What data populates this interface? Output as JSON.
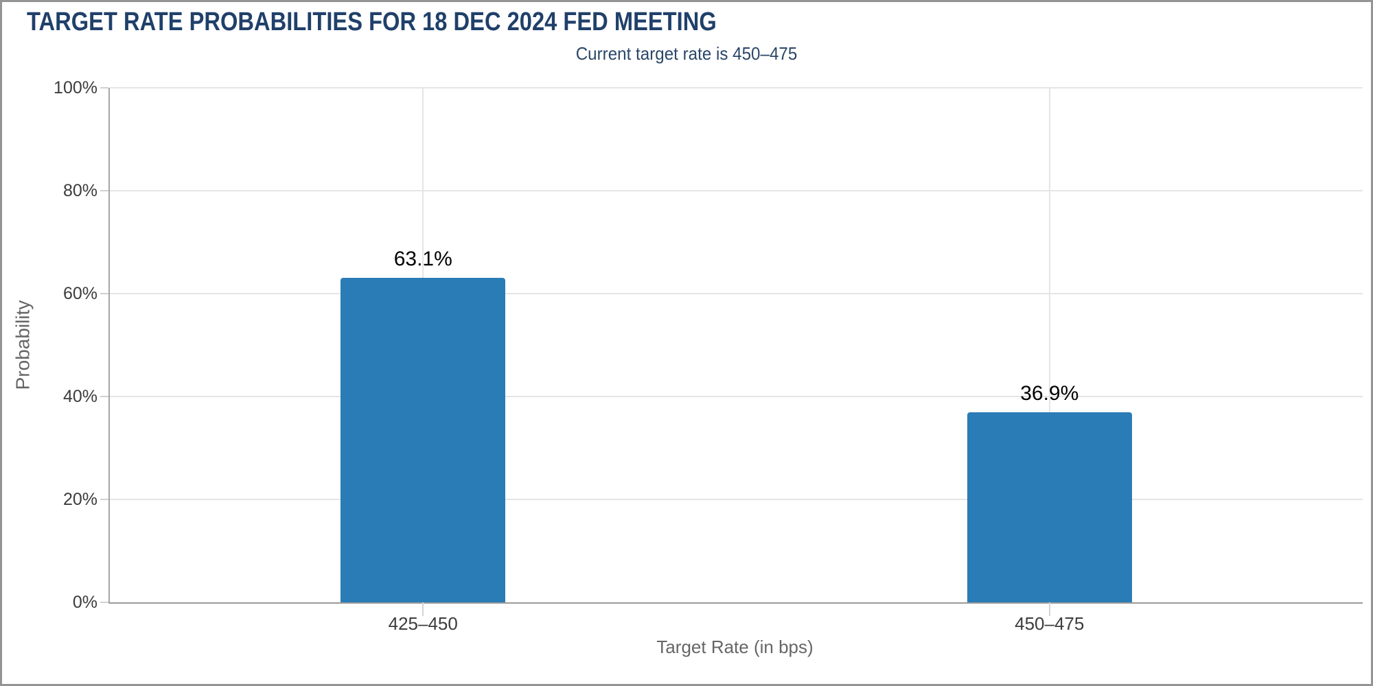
{
  "header": {
    "title": "TARGET RATE PROBABILITIES FOR 18 DEC 2024 FED MEETING",
    "subtitle": "Current target rate is 450–475"
  },
  "colors": {
    "title": "#20406a",
    "subtitle": "#2b4668",
    "bar": "#2a7cb7",
    "gridline": "#e5e5e5",
    "axis_line": "#9a9a9a",
    "tick_label": "#3c3c3c",
    "axis_title": "#666666",
    "value_label": "#000000",
    "frame_border": "#949494"
  },
  "chart_data": {
    "type": "bar",
    "title": "TARGET RATE PROBABILITIES FOR 18 DEC 2024 FED MEETING",
    "subtitle": "Current target rate is 450–475",
    "categories": [
      "425–450",
      "450–475"
    ],
    "values": [
      63.1,
      36.9
    ],
    "value_labels": [
      "63.1%",
      "36.9%"
    ],
    "xlabel": "Target Rate (in bps)",
    "ylabel": "Probability",
    "ylim": [
      0,
      100
    ],
    "yticks": [
      0,
      20,
      40,
      60,
      80,
      100
    ],
    "ytick_labels": [
      "0%",
      "20%",
      "40%",
      "60%",
      "80%",
      "100%"
    ],
    "grid": true,
    "vertical_grid_at_categories": true,
    "legend": false
  }
}
